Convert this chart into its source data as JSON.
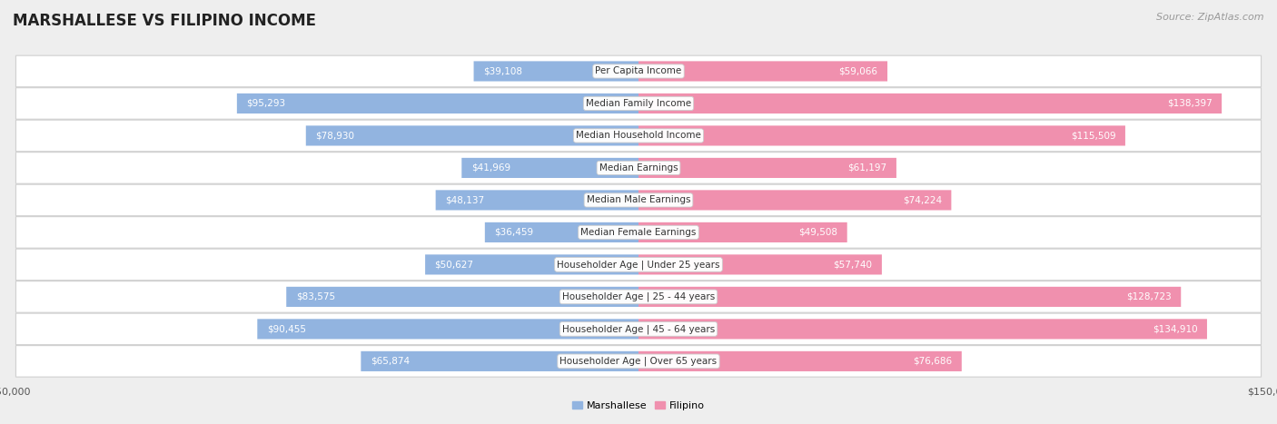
{
  "title": "MARSHALLESE VS FILIPINO INCOME",
  "source": "Source: ZipAtlas.com",
  "categories": [
    "Per Capita Income",
    "Median Family Income",
    "Median Household Income",
    "Median Earnings",
    "Median Male Earnings",
    "Median Female Earnings",
    "Householder Age | Under 25 years",
    "Householder Age | 25 - 44 years",
    "Householder Age | 45 - 64 years",
    "Householder Age | Over 65 years"
  ],
  "marshallese": [
    39108,
    95293,
    78930,
    41969,
    48137,
    36459,
    50627,
    83575,
    90455,
    65874
  ],
  "filipino": [
    59066,
    138397,
    115509,
    61197,
    74224,
    49508,
    57740,
    128723,
    134910,
    76686
  ],
  "max_value": 150000,
  "marshallese_color": "#92b4e0",
  "filipino_color": "#f090ae",
  "marshallese_label": "Marshallese",
  "filipino_label": "Filipino",
  "bg_color": "#eeeeee",
  "row_bg_color": "#ffffff",
  "bar_height": 0.62,
  "label_fontsize": 7.5,
  "value_fontsize": 7.5,
  "title_fontsize": 12,
  "source_fontsize": 8,
  "axis_label_color": "#555555",
  "text_color_dark": "#444444",
  "text_color_white": "#ffffff",
  "inside_threshold": 0.22
}
